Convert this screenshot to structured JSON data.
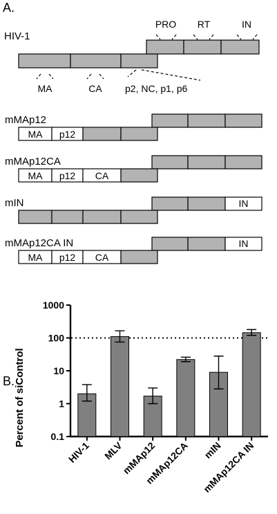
{
  "panel_a": {
    "label": "A.",
    "hiv": {
      "name": "HIV-1",
      "top_labels": [
        "PRO",
        "RT",
        "IN"
      ],
      "bottom_labels": [
        "MA",
        "CA",
        "p2, NC, p1, p6"
      ]
    },
    "constructs": [
      {
        "name": "mMAp12",
        "gag": [
          "MA",
          "p12",
          "",
          ""
        ],
        "pol": [
          "",
          "",
          ""
        ],
        "gag_white": [
          true,
          true,
          false,
          false
        ],
        "pol_white": [
          false,
          false,
          false
        ]
      },
      {
        "name": "mMAp12CA",
        "gag": [
          "MA",
          "p12",
          "CA",
          ""
        ],
        "pol": [
          "",
          "",
          ""
        ],
        "gag_white": [
          true,
          true,
          true,
          false
        ],
        "pol_white": [
          false,
          false,
          false
        ]
      },
      {
        "name": "mIN",
        "gag": [
          "",
          "",
          "",
          ""
        ],
        "pol": [
          "",
          "",
          "IN"
        ],
        "gag_white": [
          false,
          false,
          false,
          false
        ],
        "pol_white": [
          false,
          false,
          true
        ]
      },
      {
        "name": "mMAp12CA IN",
        "gag": [
          "MA",
          "p12",
          "CA",
          ""
        ],
        "pol": [
          "",
          "",
          "IN"
        ],
        "gag_white": [
          true,
          true,
          true,
          false
        ],
        "pol_white": [
          false,
          false,
          true
        ]
      }
    ]
  },
  "panel_b": {
    "label": "B."
  },
  "chart_data": {
    "type": "bar",
    "ylabel": "Percent of siControl",
    "yscale": "log",
    "ylim": [
      0.1,
      1000
    ],
    "yticks": [
      "0.1",
      "1",
      "10",
      "100",
      "1000"
    ],
    "categories": [
      "HIV-1",
      "MLV",
      "mMAp12",
      "mMAp12CA",
      "mIN",
      "mMAp12CA IN"
    ],
    "values": [
      2.0,
      110,
      1.7,
      22,
      9,
      145
    ],
    "err_low": [
      1.2,
      75,
      1.0,
      19,
      2.8,
      120
    ],
    "err_high": [
      3.8,
      165,
      3.0,
      26,
      28,
      180
    ],
    "reference_line": 100
  }
}
